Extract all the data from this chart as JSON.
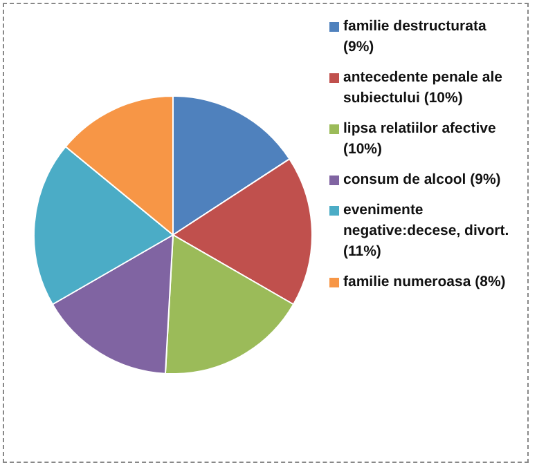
{
  "chart_data": {
    "type": "pie",
    "categories": [
      "familie destructurata (9%)",
      "antecedente penale ale subiectului (10%)",
      "lipsa relatiilor afective (10%)",
      "consum de alcool (9%)",
      "evenimente negative:decese, divort. (11%)",
      "familie numeroasa (8%)"
    ],
    "values": [
      9,
      10,
      10,
      9,
      11,
      8
    ],
    "colors": [
      "#4f81bd",
      "#c0504d",
      "#9bbb59",
      "#8064a2",
      "#4bacc6",
      "#f79646"
    ],
    "legend": "right"
  }
}
